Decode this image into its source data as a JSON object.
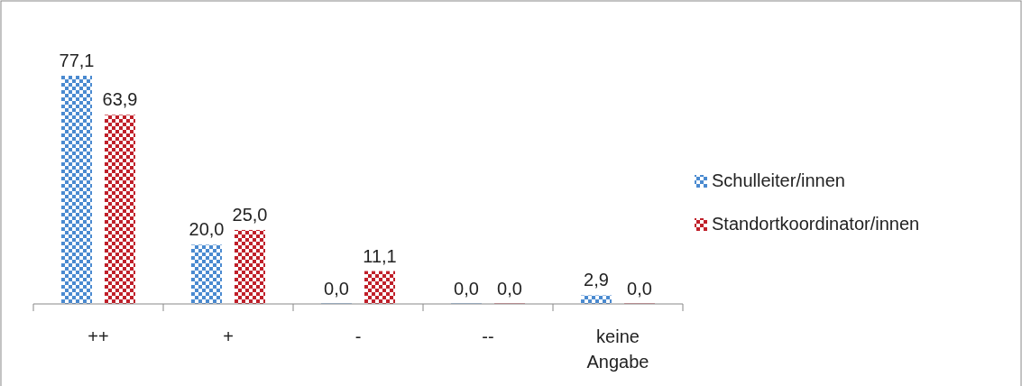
{
  "chart_data": {
    "type": "bar",
    "categories": [
      "++",
      "+",
      "-",
      "--",
      "keine Angabe"
    ],
    "series": [
      {
        "name": "Schulleiter/innen",
        "color": "#4a8ad0",
        "values": [
          77.1,
          20.0,
          0.0,
          0.0,
          2.9
        ],
        "value_labels": [
          "77,1",
          "20,0",
          "0,0",
          "0,0",
          "2,9"
        ]
      },
      {
        "name": "Standortkoordinator/innen",
        "color": "#c0202a",
        "values": [
          63.9,
          25.0,
          11.1,
          0.0,
          0.0
        ],
        "value_labels": [
          "63,9",
          "25,0",
          "11,1",
          "0,0",
          "0,0"
        ]
      }
    ],
    "legend": "right"
  }
}
